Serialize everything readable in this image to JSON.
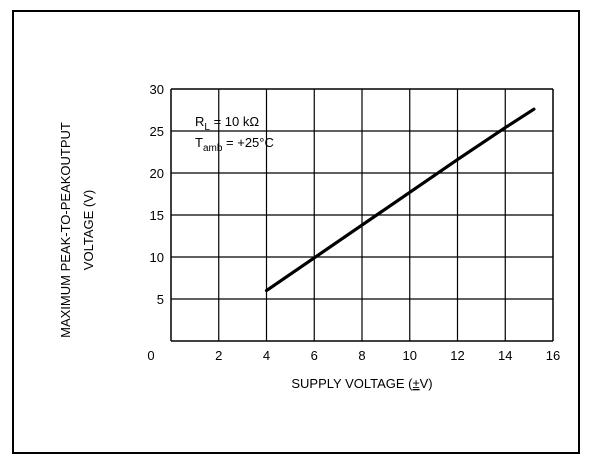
{
  "chart_data": {
    "type": "line",
    "title": "",
    "xlabel": "SUPPLY VOLTAGE (±V)",
    "xlabel_parts": [
      "SUPPLY VOLTAGE (",
      "±",
      "V)"
    ],
    "ylabel_lines": [
      "MAXIMUM PEAK-TO-PEAKOUTPUT",
      "VOLTAGE (V)"
    ],
    "xlim": [
      0,
      16
    ],
    "ylim": [
      0,
      30
    ],
    "x_ticks": [
      0,
      2,
      4,
      6,
      8,
      10,
      12,
      14,
      16
    ],
    "y_ticks": [
      5,
      10,
      15,
      20,
      25,
      30
    ],
    "grid": true,
    "series": [
      {
        "x": [
          4,
          6,
          8,
          10,
          12,
          14,
          15.2
        ],
        "y": [
          6,
          9.9,
          13.8,
          17.7,
          21.6,
          25.4,
          27.6
        ]
      }
    ],
    "annotations": {
      "rl_main": "R",
      "rl_sub": "L",
      "rl_value": " = 10 kΩ",
      "tamb_main": "T",
      "tamb_sub": "amb",
      "tamb_value": " = +25°C"
    },
    "colors": {
      "line": "#000000",
      "grid": "#000000",
      "background": "#ffffff"
    }
  }
}
